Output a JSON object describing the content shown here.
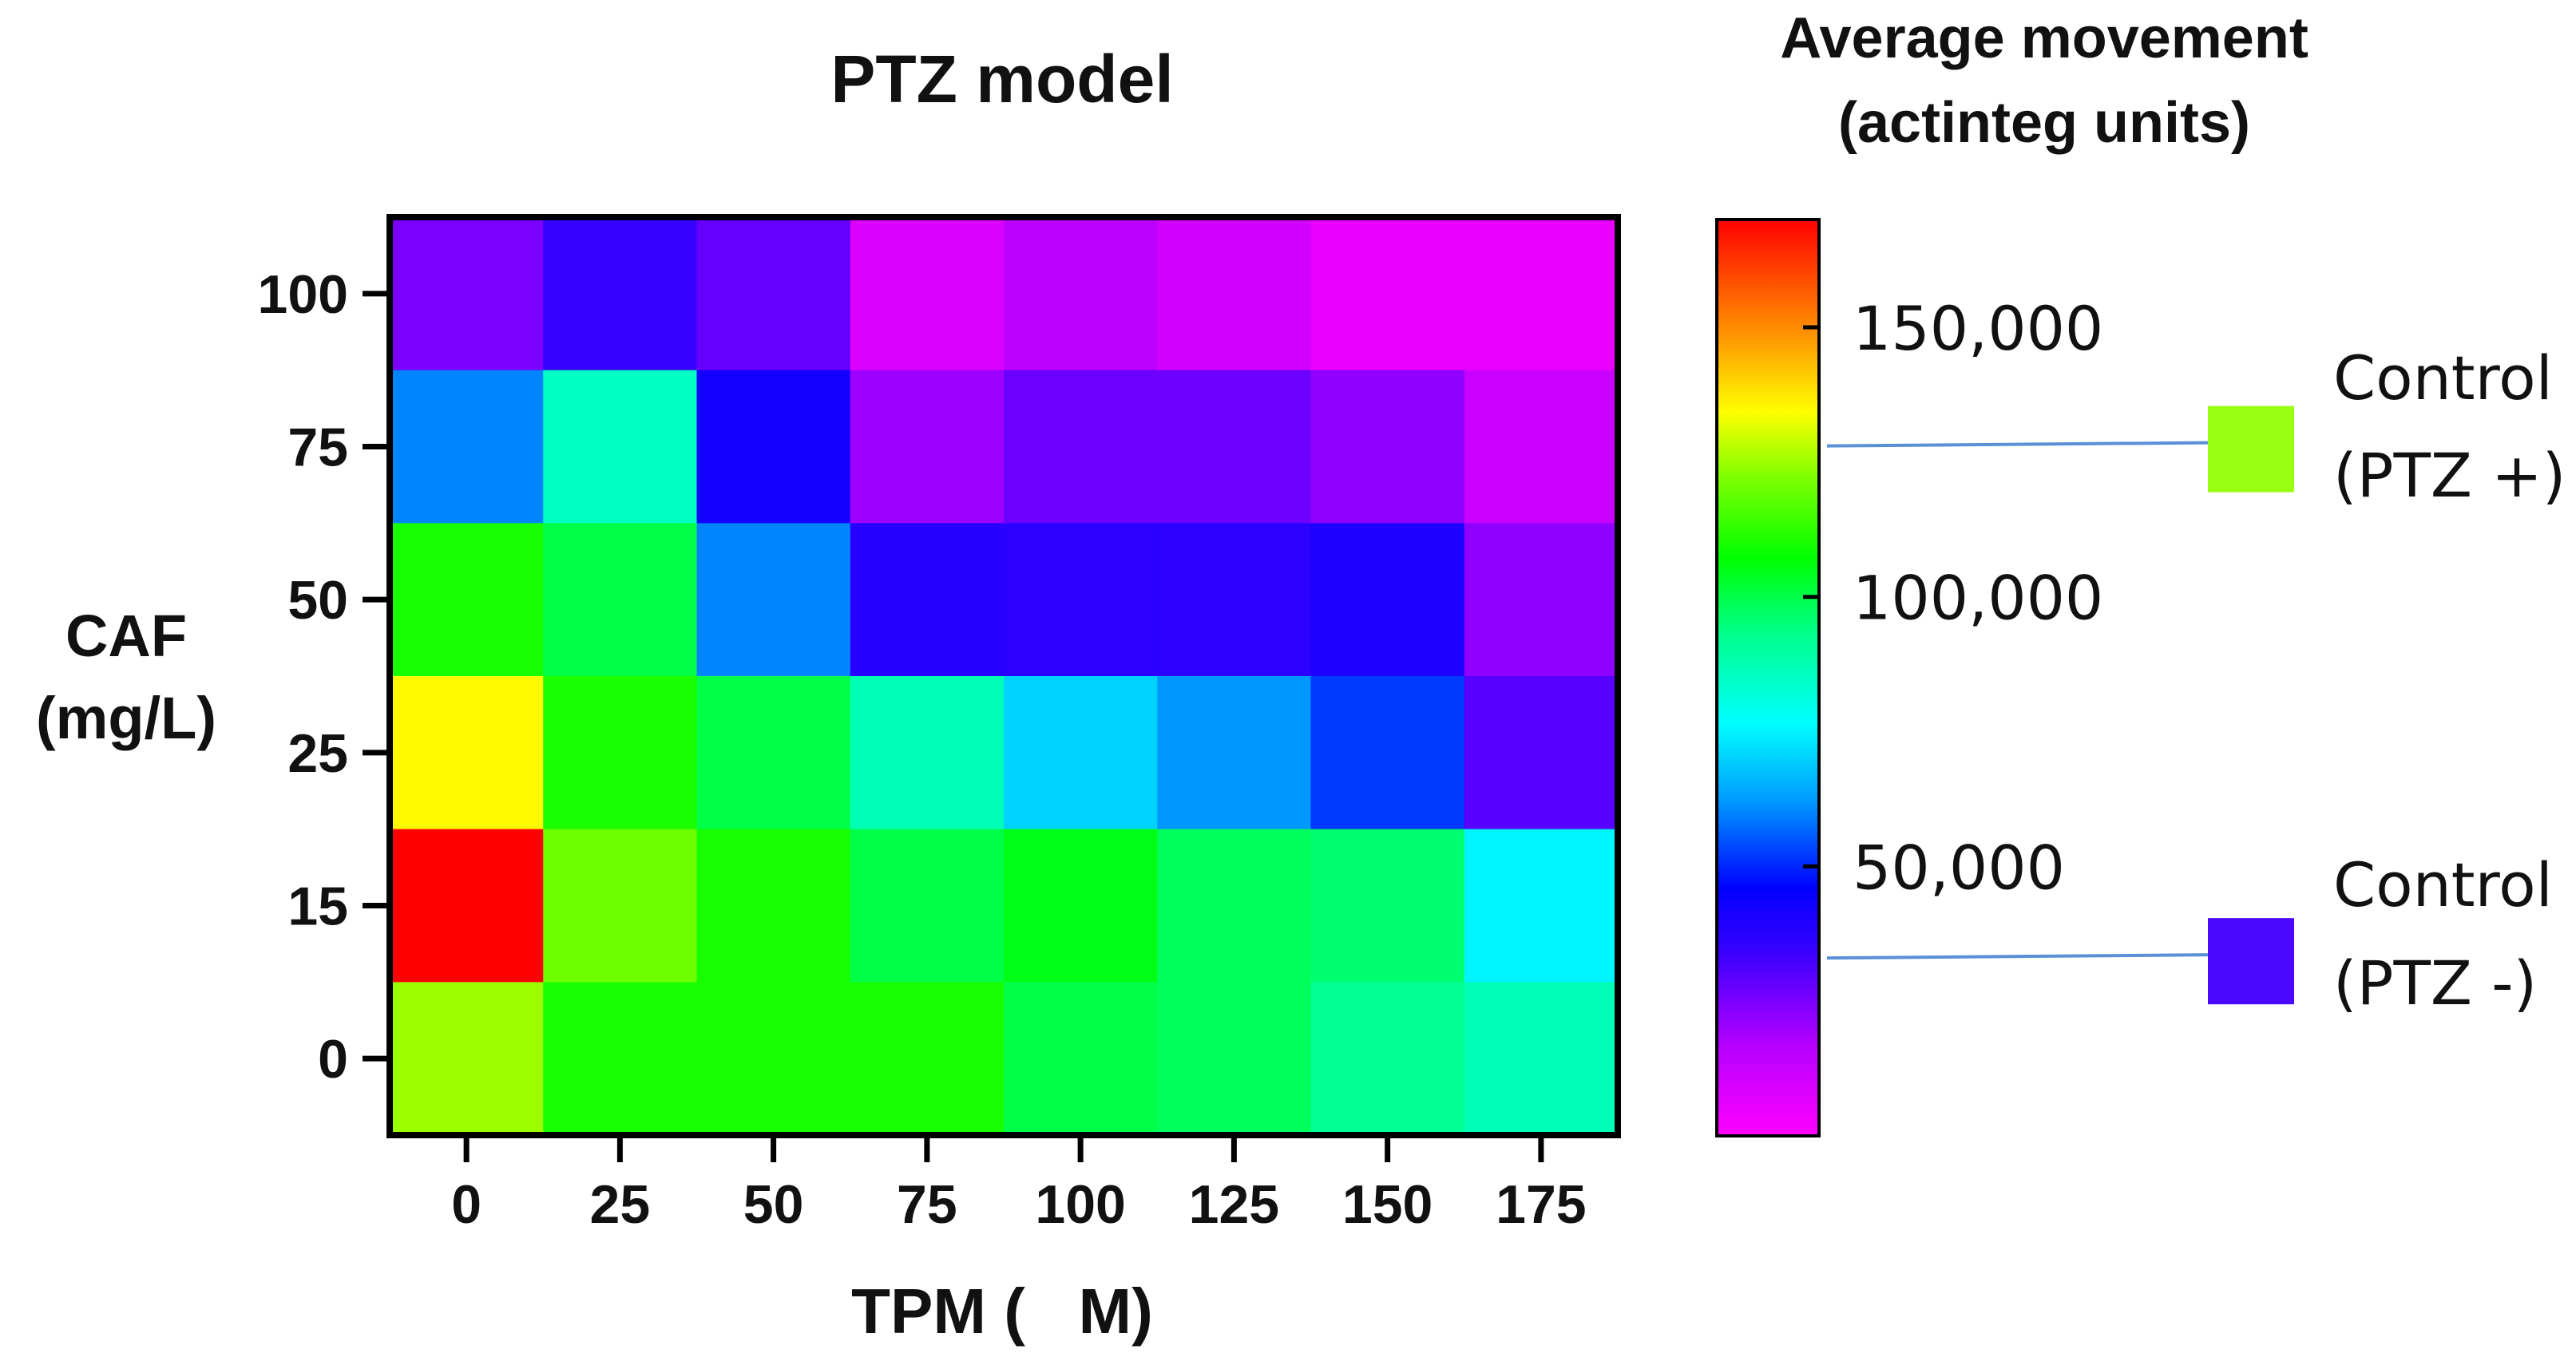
{
  "chart_data": {
    "type": "heatmap",
    "title": "PTZ model",
    "xlabel": "TPM (   M)",
    "ylabel": [
      "CAF",
      "(mg/L)"
    ],
    "x_categories": [
      "0",
      "25",
      "50",
      "75",
      "100",
      "125",
      "150",
      "175"
    ],
    "y_categories": [
      "100",
      "75",
      "50",
      "25",
      "15",
      "0"
    ],
    "values": [
      [
        25000,
        35000,
        28000,
        8000,
        15000,
        10000,
        5000,
        5000
      ],
      [
        60000,
        85000,
        42000,
        20000,
        27000,
        27000,
        22000,
        12000
      ],
      [
        110000,
        100000,
        60000,
        38000,
        37000,
        37000,
        40000,
        22000
      ],
      [
        135000,
        110000,
        100000,
        87000,
        70000,
        62000,
        52000,
        30000
      ],
      [
        170000,
        120000,
        110000,
        100000,
        105000,
        98000,
        96000,
        75000
      ],
      [
        125000,
        110000,
        110000,
        110000,
        100000,
        98000,
        92000,
        87000
      ]
    ],
    "colorbar": {
      "title": [
        "Average movement",
        "(actinteg units)"
      ],
      "range": [
        0,
        170000
      ],
      "ticks": [
        50000,
        100000,
        150000
      ],
      "tick_labels": [
        "50,000",
        "100,000",
        "150,000"
      ]
    },
    "legend": [
      {
        "label_line1": "Control",
        "label_line2": "(PTZ +)",
        "value": 128000,
        "color": "#99ff13"
      },
      {
        "label_line1": "Control",
        "label_line2": "(PTZ -)",
        "value": 33000,
        "color": "#4c08ff"
      }
    ]
  }
}
